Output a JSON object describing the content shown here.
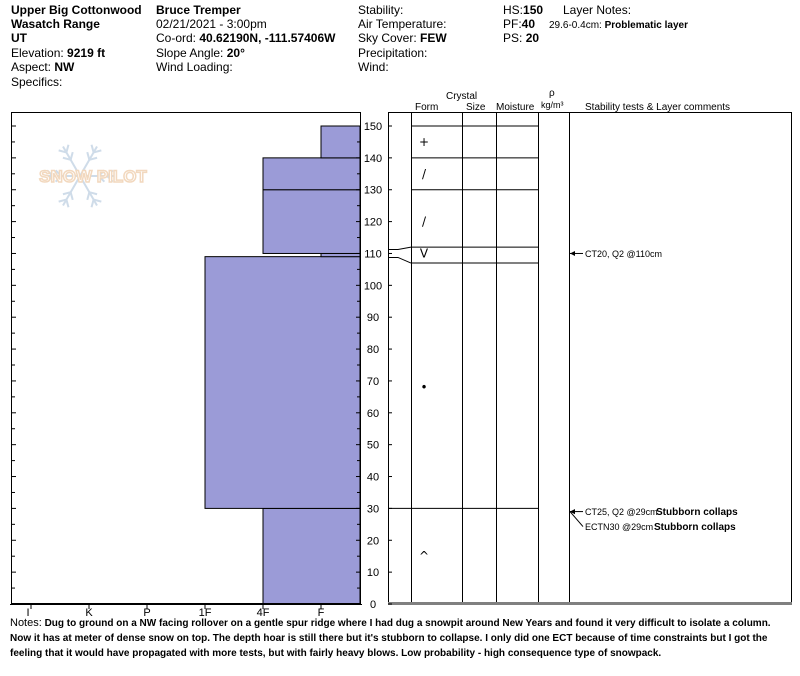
{
  "header": {
    "location": "Upper Big Cottonwood",
    "range": "Wasatch Range",
    "state": "UT",
    "elevation_label": "Elevation:",
    "elevation": "9219 ft",
    "aspect_label": "Aspect:",
    "aspect": "NW",
    "specifics_label": "Specifics:",
    "observer": "Bruce Tremper",
    "datetime": "02/21/2021 - 3:00pm",
    "coord_label": "Co-ord:",
    "coord": "40.62190N, -111.57406W",
    "slope_label": "Slope Angle:",
    "slope": "20°",
    "wind_loading_label": "Wind Loading:",
    "stability_label": "Stability:",
    "air_temp_label": "Air Temperature:",
    "sky_label": "Sky Cover:",
    "sky": "FEW",
    "precip_label": "Precipitation:",
    "wind_label": "Wind:",
    "hs_label": "HS:",
    "hs": "150",
    "pf_label": "PF:",
    "pf": "40",
    "ps_label": "PS:",
    "ps": "20",
    "layer_notes_label": "Layer Notes:",
    "layer_note_range": "29.6-0.4cm:",
    "layer_note_text": "Problematic layer"
  },
  "logo_text": "SNOW PILOT",
  "columns": {
    "crystal": "Crystal",
    "form": "Form",
    "size": "Size",
    "moisture": "Moisture",
    "rho": "ρ",
    "density_unit": "kg/m³",
    "comments": "Stability tests & Layer comments"
  },
  "chart_data": {
    "type": "bar",
    "ylim": [
      0,
      150
    ],
    "y_ticks": [
      0,
      10,
      20,
      30,
      40,
      50,
      60,
      70,
      80,
      90,
      100,
      110,
      120,
      130,
      140,
      150
    ],
    "hardness_ticks": [
      "I",
      "K",
      "P",
      "1F",
      "4F",
      "F"
    ],
    "hardness_layers": [
      {
        "bottom": 0,
        "top": 30,
        "hardness": "4F"
      },
      {
        "bottom": 30,
        "top": 109,
        "hardness": "1F"
      },
      {
        "bottom": 109,
        "top": 110,
        "hardness": "F"
      },
      {
        "bottom": 110,
        "top": 130,
        "hardness": "4F"
      },
      {
        "bottom": 130,
        "top": 140,
        "hardness": "4F"
      },
      {
        "bottom": 140,
        "top": 150,
        "hardness": "F"
      }
    ],
    "layer_boundaries": [
      150,
      140,
      130,
      112,
      107,
      30
    ],
    "grain_forms": [
      {
        "height": 145,
        "symbol": "+"
      },
      {
        "height": 135,
        "symbol": "/"
      },
      {
        "height": 120,
        "symbol": "/"
      },
      {
        "height": 110,
        "symbol": "V"
      },
      {
        "height": 68,
        "symbol": "•"
      },
      {
        "height": 15,
        "symbol": "^"
      }
    ],
    "stability_tests": [
      {
        "height": 110,
        "text": "CT20, Q2 @110cm",
        "comment": ""
      },
      {
        "height": 29,
        "text": "CT25, Q2 @29cm",
        "comment": "Stubborn collaps"
      },
      {
        "height": 29,
        "text": "ECTN30 @29cm",
        "comment": "Stubborn collaps"
      }
    ]
  },
  "notes": {
    "label": "Notes:",
    "text": "Dug to ground on a NW facing rollover on a gentle spur ridge where I had dug a snowpit around New Years and found it very difficult to isolate a column.  Now it has at meter of dense snow on top.  The depth hoar is still there but it's stubborn to collapse.  I only did one ECT because of time constraints but I got the feeling that it would have propagated with more tests, but with fairly heavy blows.  Low probability - high consequence type of snowpack."
  }
}
